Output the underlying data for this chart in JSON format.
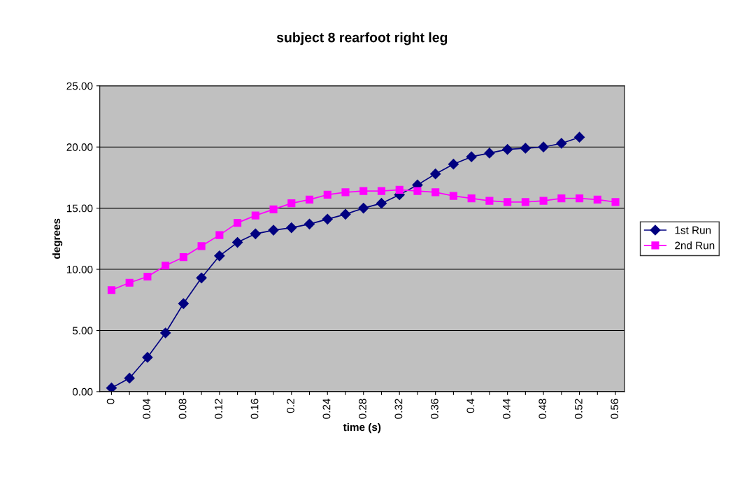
{
  "chart_data": {
    "type": "line",
    "title": "subject 8 rearfoot right leg",
    "xlabel": "time (s)",
    "ylabel": "degrees",
    "categories": [
      "0",
      null,
      "0.04",
      null,
      "0.08",
      null,
      "0.12",
      null,
      "0.16",
      null,
      "0.2",
      null,
      "0.24",
      null,
      "0.28",
      null,
      "0.32",
      null,
      "0.36",
      null,
      "0.4",
      null,
      "0.44",
      null,
      "0.48",
      null,
      "0.52",
      null,
      "0.56"
    ],
    "series": [
      {
        "name": "1st Run",
        "color": "#000080",
        "marker": "diamond",
        "values": [
          0.3,
          1.1,
          2.8,
          4.8,
          7.2,
          9.3,
          11.1,
          12.2,
          12.9,
          13.2,
          13.4,
          13.7,
          14.1,
          14.5,
          15.0,
          15.4,
          16.1,
          16.9,
          17.8,
          18.6,
          19.2,
          19.5,
          19.8,
          19.9,
          20.0,
          20.3,
          20.8,
          null,
          null
        ]
      },
      {
        "name": "2nd Run",
        "color": "#ff00ff",
        "marker": "square",
        "values": [
          8.3,
          8.9,
          9.4,
          10.3,
          11.0,
          11.9,
          12.8,
          13.8,
          14.4,
          14.9,
          15.4,
          15.7,
          16.1,
          16.3,
          16.4,
          16.4,
          16.5,
          16.4,
          16.3,
          16.0,
          15.8,
          15.6,
          15.5,
          15.5,
          15.6,
          15.8,
          15.8,
          15.7,
          15.5
        ]
      }
    ],
    "ylim": [
      0,
      25
    ],
    "yticks": [
      {
        "value": 0,
        "label": "0.00"
      },
      {
        "value": 5,
        "label": "5.00"
      },
      {
        "value": 10,
        "label": "10.00"
      },
      {
        "value": 15,
        "label": "15.00"
      },
      {
        "value": 20,
        "label": "20.00"
      },
      {
        "value": 25,
        "label": "25.00"
      }
    ],
    "grid": "y",
    "legend": "right"
  }
}
